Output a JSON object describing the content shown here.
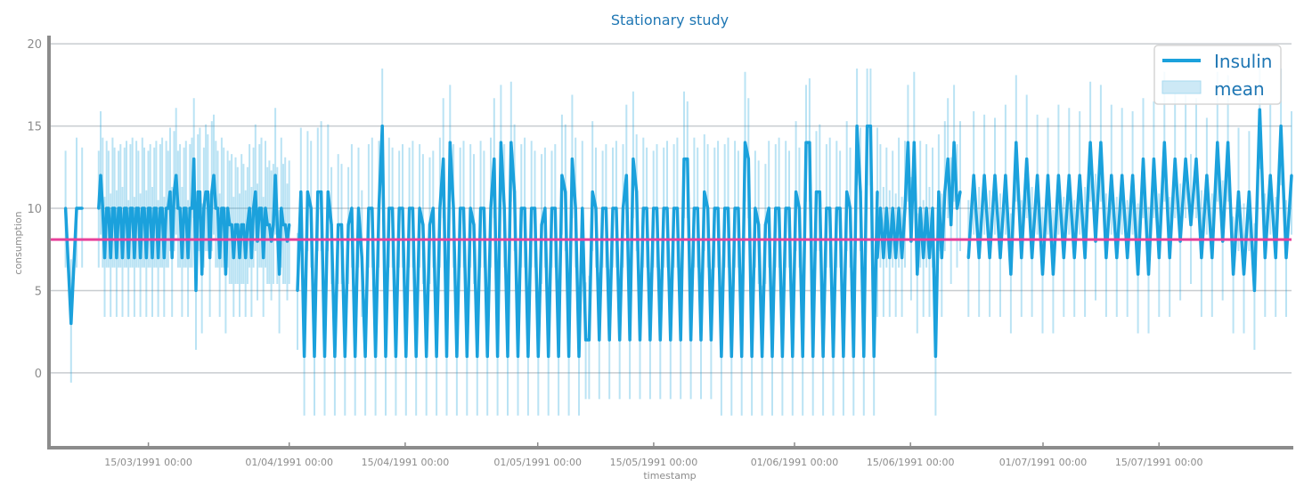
{
  "chart_data": {
    "type": "line",
    "title": "Stationary study",
    "xlabel": "timestamp",
    "ylabel": "consumption",
    "ylim": [
      -4.5,
      20.5
    ],
    "yticks": [
      0,
      5,
      10,
      15,
      20
    ],
    "xlim": [
      "1991-03-03",
      "1991-07-31"
    ],
    "xticks": [
      {
        "date": "1991-03-15",
        "label": "15/03/1991 00:00"
      },
      {
        "date": "1991-04-01",
        "label": "01/04/1991 00:00"
      },
      {
        "date": "1991-04-15",
        "label": "15/04/1991 00:00"
      },
      {
        "date": "1991-05-01",
        "label": "01/05/1991 00:00"
      },
      {
        "date": "1991-05-15",
        "label": "15/05/1991 00:00"
      },
      {
        "date": "1991-06-01",
        "label": "01/06/1991 00:00"
      },
      {
        "date": "1991-06-15",
        "label": "15/06/1991 00:00"
      },
      {
        "date": "1991-07-01",
        "label": "01/07/1991 00:00"
      },
      {
        "date": "1991-07-15",
        "label": "15/07/1991 00:00"
      }
    ],
    "grid": true,
    "legend": {
      "position": "top-right",
      "entries": [
        "Insulin",
        "mean"
      ]
    },
    "mean_value": 8.1,
    "series": [
      {
        "name": "Insulin",
        "color": "#1ba1dc",
        "segments": [
          {
            "start": "1991-03-05",
            "end": "1991-03-06",
            "values": [
              10,
              3,
              10,
              10
            ]
          },
          {
            "start": "1991-03-09",
            "end": "1991-03-31",
            "values": [
              10,
              12,
              10,
              7,
              10,
              10,
              7,
              10,
              10,
              7,
              10,
              10,
              7,
              10,
              10,
              7,
              10,
              10,
              7,
              10,
              10,
              7,
              10,
              10,
              7,
              10,
              10,
              7,
              10,
              10,
              7,
              10,
              10,
              7,
              10,
              10,
              11,
              7,
              11,
              12,
              10,
              10,
              7,
              10,
              10,
              7,
              10,
              10,
              13,
              5,
              11,
              11,
              6,
              10,
              11,
              11,
              7,
              11,
              12,
              10,
              10,
              7,
              10,
              10,
              6,
              10,
              9,
              9,
              7,
              9,
              9,
              7,
              9,
              9,
              7,
              9,
              10,
              7,
              10,
              11,
              8,
              10,
              10,
              7,
              10,
              9,
              9,
              8,
              9,
              12,
              9,
              6,
              10,
              9,
              9,
              8,
              9
            ]
          },
          {
            "start": "1991-04-02",
            "end": "1991-06-10",
            "values": [
              5,
              11,
              1,
              11,
              10,
              1,
              11,
              11,
              1,
              11,
              9,
              1,
              9,
              9,
              1,
              9,
              10,
              1,
              10,
              7,
              1,
              10,
              10,
              1,
              10,
              15,
              1,
              10,
              10,
              1,
              10,
              10,
              1,
              10,
              10,
              1,
              10,
              9,
              1,
              9,
              10,
              1,
              10,
              13,
              1,
              14,
              10,
              1,
              10,
              10,
              1,
              10,
              9,
              1,
              10,
              10,
              1,
              10,
              13,
              1,
              14,
              10,
              1,
              14,
              11,
              1,
              10,
              10,
              1,
              10,
              10,
              1,
              9,
              10,
              1,
              10,
              10,
              1,
              12,
              11,
              1,
              13,
              10,
              1,
              10,
              2,
              2,
              11,
              10,
              2,
              10,
              10,
              2,
              10,
              10,
              2,
              10,
              12,
              2,
              13,
              11,
              2,
              10,
              10,
              2,
              10,
              10,
              2,
              10,
              10,
              2,
              10,
              10,
              2,
              13,
              13,
              2,
              10,
              10,
              2,
              11,
              10,
              2,
              10,
              10,
              1,
              10,
              10,
              1,
              10,
              10,
              1,
              14,
              13,
              1,
              10,
              9,
              1,
              9,
              10,
              1,
              10,
              10,
              1,
              10,
              10,
              1,
              11,
              10,
              1,
              14,
              14,
              1,
              11,
              11,
              1,
              10,
              10,
              1,
              10,
              10,
              1,
              11,
              10,
              1,
              15,
              11,
              1,
              15,
              15,
              1,
              11
            ]
          },
          {
            "start": "1991-06-11",
            "end": "1991-06-20",
            "values": [
              7,
              10,
              7,
              10,
              7,
              10,
              7,
              10,
              7,
              10,
              14,
              8,
              14,
              6,
              10,
              7,
              10,
              7,
              10,
              1,
              11,
              7,
              11,
              13,
              9,
              14,
              10,
              11
            ]
          },
          {
            "start": "1991-06-22",
            "end": "1991-07-30",
            "values": [
              7,
              12,
              7,
              12,
              7,
              12,
              7,
              12,
              6,
              14,
              7,
              13,
              7,
              12,
              6,
              12,
              6,
              12,
              7,
              12,
              7,
              12,
              7,
              14,
              8,
              14,
              7,
              12,
              7,
              12,
              7,
              12,
              6,
              13,
              6,
              13,
              7,
              14,
              7,
              13,
              8,
              13,
              9,
              13,
              7,
              12,
              7,
              14,
              8,
              14,
              6,
              11,
              6,
              11,
              5,
              16,
              7,
              12,
              7,
              15,
              7,
              12
            ]
          }
        ]
      },
      {
        "name": "mean",
        "color": "#a8daf0",
        "band": true
      }
    ]
  }
}
